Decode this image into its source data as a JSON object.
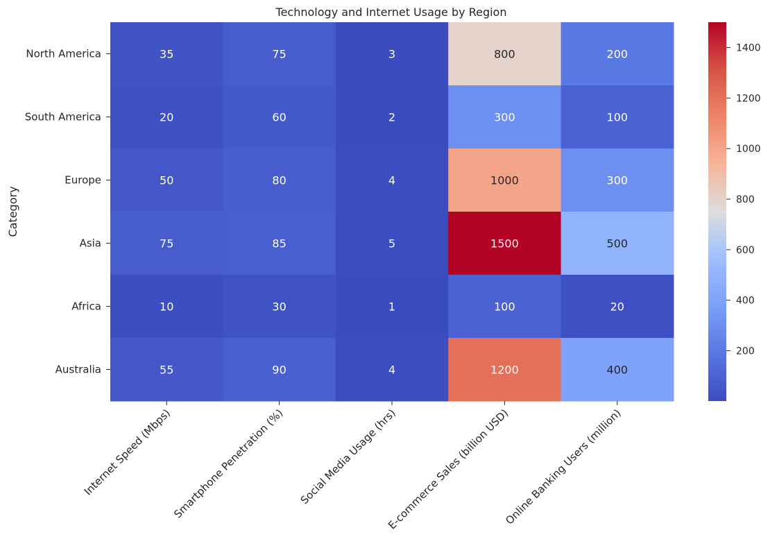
{
  "chart_data": {
    "type": "heatmap",
    "title": "Technology and Internet Usage by Region",
    "ylabel": "Category",
    "xlabel": "",
    "columns": [
      "Internet Speed (Mbps)",
      "Smartphone Penetration (%)",
      "Social Media Usage (hrs)",
      "E-commerce Sales (billion USD)",
      "Online Banking Users (million)"
    ],
    "rows": [
      "North America",
      "South America",
      "Europe",
      "Asia",
      "Africa",
      "Australia"
    ],
    "values": [
      [
        35,
        75,
        3,
        800,
        200
      ],
      [
        20,
        60,
        2,
        300,
        100
      ],
      [
        50,
        80,
        4,
        1000,
        300
      ],
      [
        75,
        85,
        5,
        1500,
        500
      ],
      [
        10,
        30,
        1,
        100,
        20
      ],
      [
        55,
        90,
        4,
        1200,
        400
      ]
    ],
    "colormap": "coolwarm",
    "colorbar": {
      "range": [
        1,
        1500
      ],
      "ticks": [
        200,
        400,
        600,
        800,
        1000,
        1200,
        1400
      ]
    },
    "annotations": true,
    "grid": false,
    "colors": {
      "low": "#3b4cc0",
      "mid": "#dddddd",
      "high": "#b40426"
    }
  }
}
